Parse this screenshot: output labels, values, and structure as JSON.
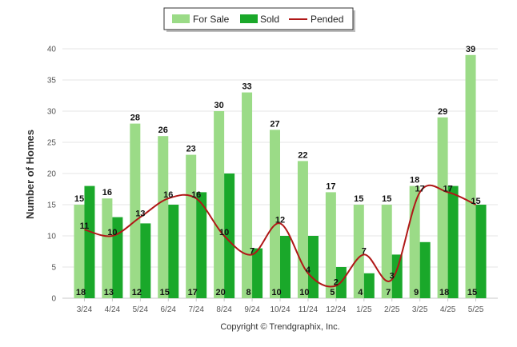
{
  "chart_data": {
    "type": "bar",
    "ylabel": "Number of Homes",
    "ylim": [
      0,
      40
    ],
    "yticks": [
      0,
      5,
      10,
      15,
      20,
      25,
      30,
      35,
      40
    ],
    "categories": [
      "3/24",
      "4/24",
      "5/24",
      "6/24",
      "7/24",
      "8/24",
      "9/24",
      "10/24",
      "11/24",
      "12/24",
      "1/25",
      "2/25",
      "3/25",
      "4/25",
      "5/25"
    ],
    "series": [
      {
        "name": "For Sale",
        "kind": "bar",
        "color": "#9bdb87",
        "values": [
          15,
          16,
          28,
          26,
          23,
          30,
          33,
          27,
          22,
          17,
          15,
          15,
          18,
          29,
          39
        ]
      },
      {
        "name": "Sold",
        "kind": "bar",
        "color": "#1aa82a",
        "values": [
          18,
          13,
          12,
          15,
          17,
          20,
          8,
          10,
          10,
          5,
          4,
          7,
          9,
          18,
          15
        ]
      },
      {
        "name": "Pended",
        "kind": "line",
        "color": "#b01818",
        "values": [
          11,
          10,
          13,
          16,
          16,
          10,
          7,
          12,
          4,
          2,
          7,
          3,
          17,
          17,
          15
        ]
      }
    ],
    "legend_position": "top-center",
    "grid": true,
    "credit": "Copyright © Trendgraphix, Inc."
  }
}
